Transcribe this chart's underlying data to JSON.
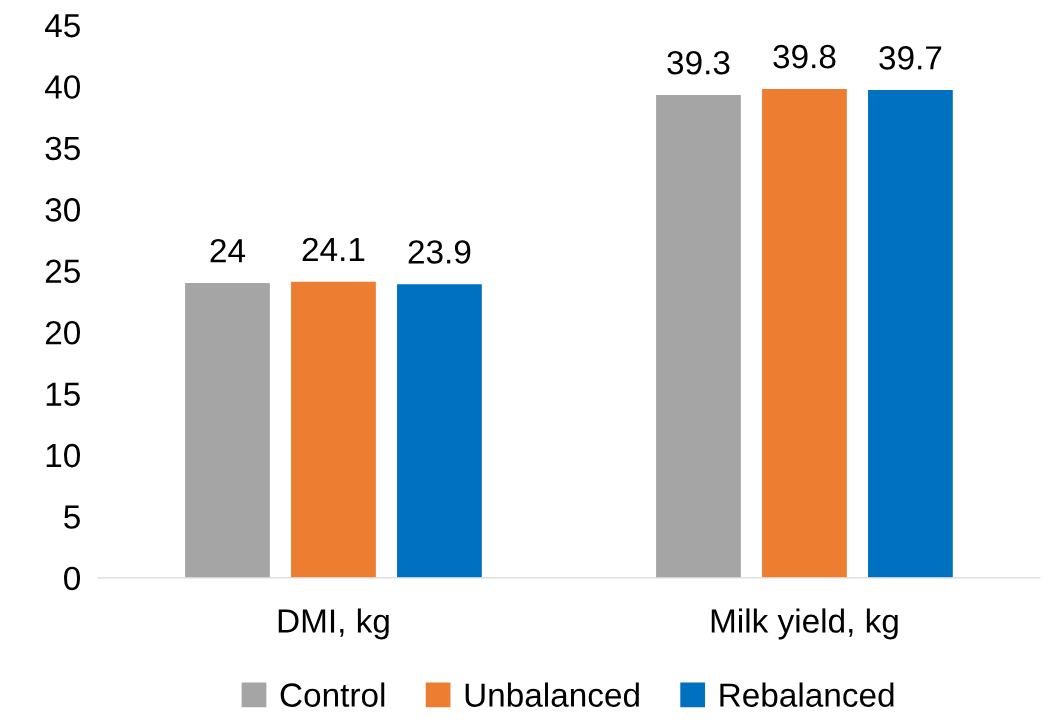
{
  "chart_data": {
    "type": "bar",
    "categories": [
      "DMI, kg",
      "Milk yield, kg"
    ],
    "series": [
      {
        "name": "Control",
        "color": "#a5a5a5",
        "values": [
          24,
          39.3
        ]
      },
      {
        "name": "Unbalanced",
        "color": "#ed7d31",
        "values": [
          24.1,
          39.8
        ]
      },
      {
        "name": "Rebalanced",
        "color": "#0070c0",
        "values": [
          23.9,
          39.7
        ]
      }
    ],
    "ylim": [
      0,
      45
    ],
    "yticks": [
      0,
      5,
      10,
      15,
      20,
      25,
      30,
      35,
      40,
      45
    ],
    "grid": false,
    "data_labels": true,
    "legend": "bottom"
  }
}
